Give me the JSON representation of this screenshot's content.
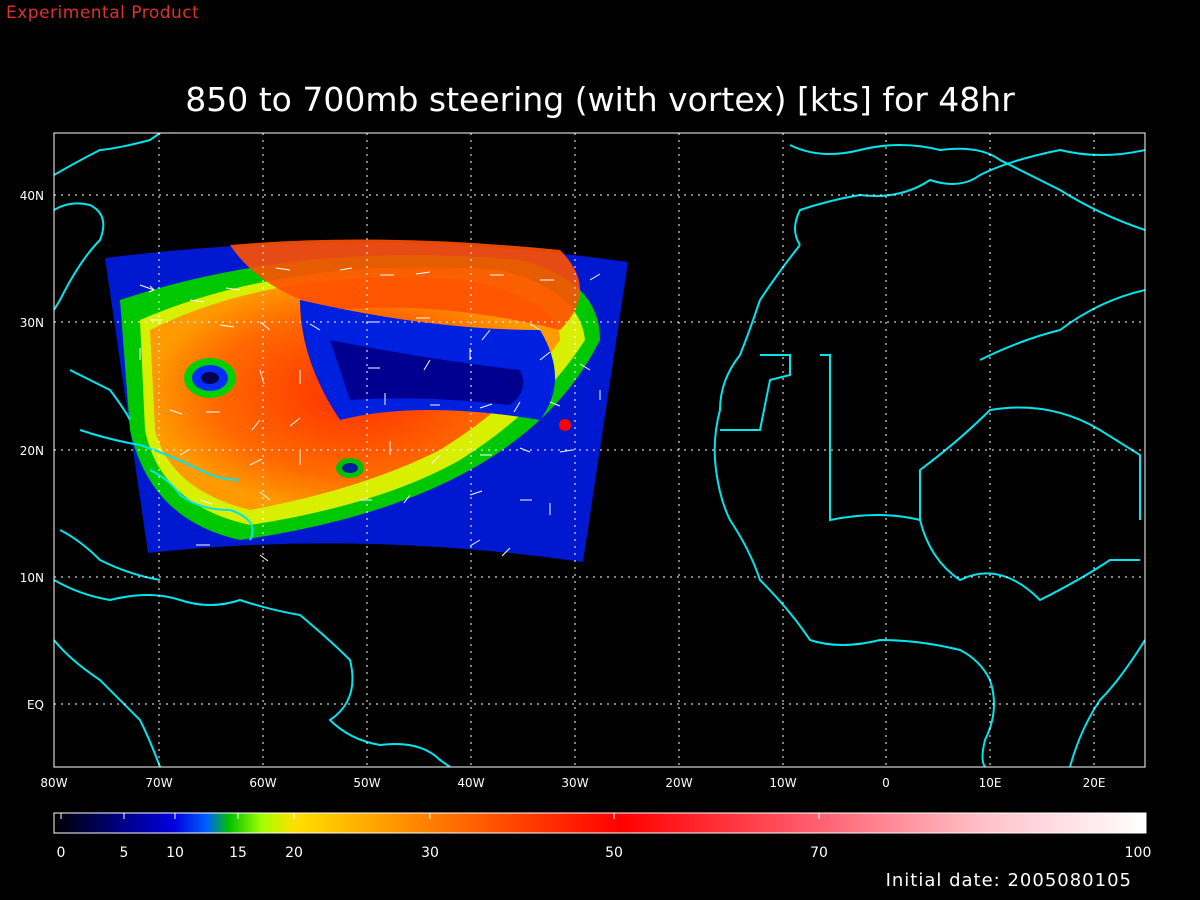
{
  "header": {
    "experimental_label": "Experimental Product",
    "title": "850 to 700mb steering (with vortex) [kts] for 48hr"
  },
  "footer": {
    "initial_date": "Initial date: 2005080105"
  },
  "map": {
    "lon_ticks": [
      "80W",
      "70W",
      "60W",
      "50W",
      "40W",
      "30W",
      "20W",
      "10W",
      "0",
      "10E",
      "20E"
    ],
    "lat_ticks": [
      "EQ",
      "10N",
      "20N",
      "30N",
      "40N"
    ],
    "coast_color": "#00e5ee",
    "grid": "dotted"
  },
  "colorbar": {
    "min": 0,
    "max": 100,
    "tick_labels": [
      "0",
      "5",
      "10",
      "15",
      "20",
      "30",
      "50",
      "70",
      "100"
    ],
    "colors": [
      "#000000",
      "#0000c8",
      "#0060ff",
      "#00d000",
      "#a0ff00",
      "#ffe000",
      "#ff8000",
      "#ff2000",
      "#ff4050",
      "#ffa0a8",
      "#ffffff"
    ]
  }
}
